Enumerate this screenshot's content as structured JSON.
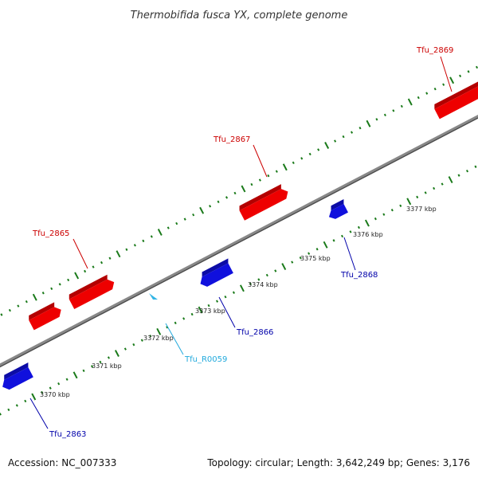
{
  "title": "Thermobifida fusca YX, complete genome",
  "footer": {
    "accession": "Accession: NC_007333",
    "summary": "Topology: circular; Length: 3,642,249 bp; Genes: 3,176"
  },
  "colors": {
    "forward_gene": "#ee0000",
    "reverse_gene": "#1010dd",
    "rna_gene": "#33b5e5",
    "backbone": "#888888",
    "tick": "#1a7a1a",
    "forward_label": "#cc0000",
    "reverse_label": "#0000aa",
    "rna_label": "#22aadd"
  },
  "genes": [
    {
      "name": "Tfu_2863",
      "strand": "reverse"
    },
    {
      "name": "Tfu_2865",
      "strand": "forward"
    },
    {
      "name": "Tfu_R0059",
      "strand": "reverse",
      "type": "RNA"
    },
    {
      "name": "Tfu_2866",
      "strand": "reverse"
    },
    {
      "name": "Tfu_2867",
      "strand": "forward"
    },
    {
      "name": "Tfu_2868",
      "strand": "reverse"
    },
    {
      "name": "Tfu_2869",
      "strand": "forward"
    }
  ],
  "scale_labels": [
    "3370 kbp",
    "3371 kbp",
    "3372 kbp",
    "3373 kbp",
    "3374 kbp",
    "3375 kbp",
    "3376 kbp",
    "3377 kbp"
  ]
}
